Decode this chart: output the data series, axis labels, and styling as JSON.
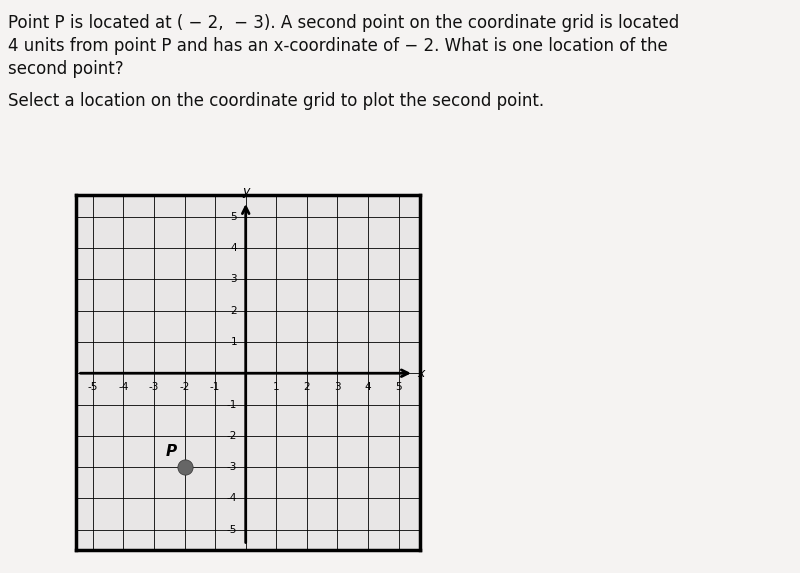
{
  "title_line1": "Point P is located at ( − 2,  − 3). A second point on the coordinate grid is located",
  "title_line2": "4 units from point P and has an x-coordinate of − 2. What is one location of the",
  "title_line3": "second point?",
  "subtitle": "Select a location on the coordinate grid to plot the second point.",
  "point_P": [
    -2,
    -3
  ],
  "point_P_label": "P",
  "axis_min": -5,
  "axis_max": 5,
  "grid_color": "#000000",
  "bg_color": "#f0eeee",
  "plot_bg": "#e8e6e6",
  "point_color": "#666666",
  "text_color": "#111111",
  "xlabel": "x",
  "ylabel": "y",
  "fig_bg": "#c8c6c4",
  "title_fontsize": 12,
  "subtitle_fontsize": 12,
  "tick_fontsize": 7.5
}
